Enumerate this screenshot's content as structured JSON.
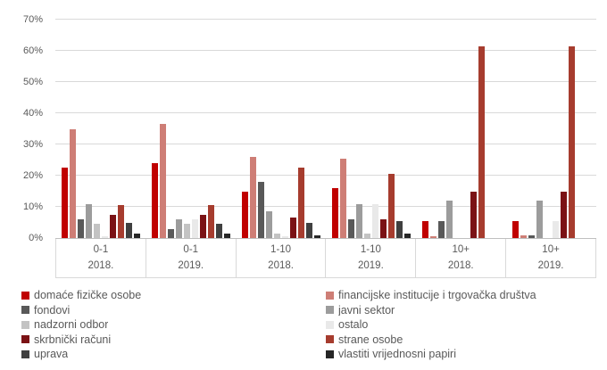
{
  "chart_data": {
    "type": "bar",
    "title": "",
    "xlabel": "",
    "ylabel": "",
    "grid": true,
    "legend_position": "bottom",
    "axis": {
      "y_min": 0,
      "y_max": 70,
      "y_step": 10,
      "y_tick_labels": [
        "0%",
        "10%",
        "20%",
        "30%",
        "40%",
        "50%",
        "60%",
        "70%"
      ]
    },
    "groups": [
      {
        "label": "0-1",
        "year": "2018."
      },
      {
        "label": "0-1",
        "year": "2019."
      },
      {
        "label": "1-10",
        "year": "2018."
      },
      {
        "label": "1-10",
        "year": "2019."
      },
      {
        "label": "10+",
        "year": "2018."
      },
      {
        "label": "10+",
        "year": "2019."
      }
    ],
    "series": [
      {
        "name": "domaće fizičke osobe",
        "color": "#C00000",
        "values": [
          22.5,
          24,
          15,
          16,
          5.5,
          5.5
        ]
      },
      {
        "name": "financijske institucije i trgovačka društva",
        "color": "#CE7E76",
        "values": [
          35,
          36.5,
          26,
          25.5,
          0.5,
          1
        ]
      },
      {
        "name": "fondovi",
        "color": "#595959",
        "values": [
          6,
          3,
          18,
          6,
          5.5,
          1
        ]
      },
      {
        "name": "javni sektor",
        "color": "#9C9C9C",
        "values": [
          11,
          6,
          8.5,
          11,
          12,
          12
        ]
      },
      {
        "name": "nadzorni odbor",
        "color": "#C3C3C3",
        "values": [
          4.5,
          4.5,
          1.5,
          1.5,
          0,
          0
        ]
      },
      {
        "name": "ostalo",
        "color": "#E9E9E9",
        "values": [
          0.5,
          6,
          0.5,
          11,
          0,
          5.5
        ]
      },
      {
        "name": "skrbnički računi",
        "color": "#7B1215",
        "values": [
          7.5,
          7.5,
          6.5,
          6,
          15,
          15
        ]
      },
      {
        "name": "strane osobe",
        "color": "#A63C2E",
        "values": [
          10.5,
          10.5,
          22.5,
          20.5,
          61.5,
          61.5
        ]
      },
      {
        "name": "uprava",
        "color": "#404040",
        "values": [
          5,
          4.5,
          5,
          5.5,
          0,
          0
        ]
      },
      {
        "name": "vlastiti vrijednosni papiri",
        "color": "#262626",
        "values": [
          1.5,
          1.5,
          1,
          1.5,
          0,
          0
        ]
      }
    ],
    "colors": {
      "gridline": "#D9D9D9",
      "axis_line": "#BFBFBF",
      "tick_text": "#595959",
      "legend_text": "#595959"
    }
  }
}
